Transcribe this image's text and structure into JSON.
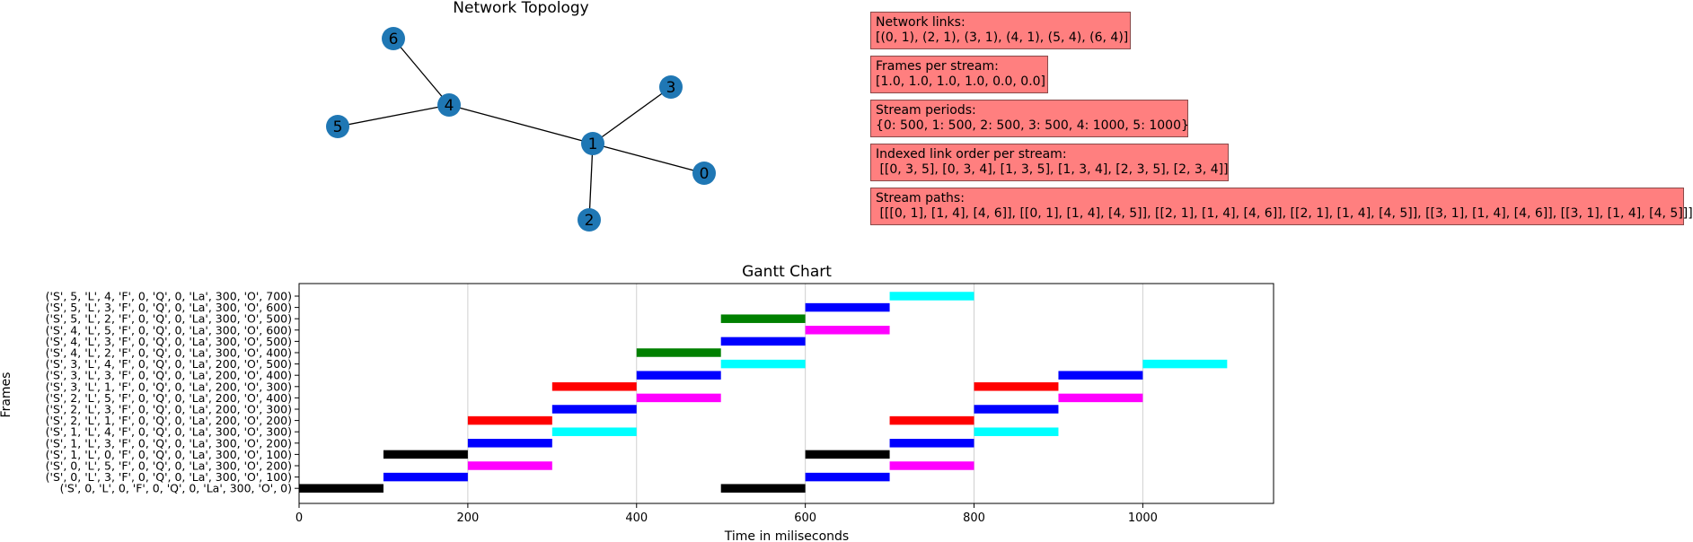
{
  "chart_data": [
    {
      "type": "network",
      "title": "Network  Topology",
      "nodes": [
        {
          "id": "0",
          "label": "0"
        },
        {
          "id": "1",
          "label": "1"
        },
        {
          "id": "2",
          "label": "2"
        },
        {
          "id": "3",
          "label": "3"
        },
        {
          "id": "4",
          "label": "4"
        },
        {
          "id": "5",
          "label": "5"
        },
        {
          "id": "6",
          "label": "6"
        }
      ],
      "edges": [
        [
          "0",
          "1"
        ],
        [
          "2",
          "1"
        ],
        [
          "3",
          "1"
        ],
        [
          "4",
          "1"
        ],
        [
          "5",
          "4"
        ],
        [
          "6",
          "4"
        ]
      ],
      "node_color": "#1f77b4"
    },
    {
      "type": "gantt",
      "title": "Gantt Chart",
      "xlabel": "Time in miliseconds",
      "ylabel": "Frames",
      "xlim": [
        0,
        1155
      ],
      "xticks": [
        0,
        200,
        400,
        600,
        800,
        1000
      ],
      "grid": "x",
      "categories": [
        "('S', 0, 'L', 0, 'F', 0, 'Q', 0, 'La', 300, 'O', 0)",
        "('S', 0, 'L', 3, 'F', 0, 'Q', 0, 'La', 300, 'O', 100)",
        "('S', 0, 'L', 5, 'F', 0, 'Q', 0, 'La', 300, 'O', 200)",
        "('S', 1, 'L', 0, 'F', 0, 'Q', 0, 'La', 300, 'O', 100)",
        "('S', 1, 'L', 3, 'F', 0, 'Q', 0, 'La', 300, 'O', 200)",
        "('S', 1, 'L', 4, 'F', 0, 'Q', 0, 'La', 300, 'O', 300)",
        "('S', 2, 'L', 1, 'F', 0, 'Q', 0, 'La', 200, 'O', 200)",
        "('S', 2, 'L', 3, 'F', 0, 'Q', 0, 'La', 200, 'O', 300)",
        "('S', 2, 'L', 5, 'F', 0, 'Q', 0, 'La', 200, 'O', 400)",
        "('S', 3, 'L', 1, 'F', 0, 'Q', 0, 'La', 200, 'O', 300)",
        "('S', 3, 'L', 3, 'F', 0, 'Q', 0, 'La', 200, 'O', 400)",
        "('S', 3, 'L', 4, 'F', 0, 'Q', 0, 'La', 200, 'O', 500)",
        "('S', 4, 'L', 2, 'F', 0, 'Q', 0, 'La', 300, 'O', 400)",
        "('S', 4, 'L', 3, 'F', 0, 'Q', 0, 'La', 300, 'O', 500)",
        "('S', 4, 'L', 5, 'F', 0, 'Q', 0, 'La', 300, 'O', 600)",
        "('S', 5, 'L', 2, 'F', 0, 'Q', 0, 'La', 300, 'O', 500)",
        "('S', 5, 'L', 3, 'F', 0, 'Q', 0, 'La', 300, 'O', 600)",
        "('S', 5, 'L', 4, 'F', 0, 'Q', 0, 'La', 300, 'O', 700)"
      ],
      "bars": [
        {
          "row": 0,
          "start": 0,
          "end": 100,
          "color": "#000000"
        },
        {
          "row": 0,
          "start": 500,
          "end": 600,
          "color": "#000000"
        },
        {
          "row": 1,
          "start": 100,
          "end": 200,
          "color": "#0000ff"
        },
        {
          "row": 1,
          "start": 600,
          "end": 700,
          "color": "#0000ff"
        },
        {
          "row": 2,
          "start": 200,
          "end": 300,
          "color": "#ff00ff"
        },
        {
          "row": 2,
          "start": 700,
          "end": 800,
          "color": "#ff00ff"
        },
        {
          "row": 3,
          "start": 100,
          "end": 200,
          "color": "#000000"
        },
        {
          "row": 3,
          "start": 600,
          "end": 700,
          "color": "#000000"
        },
        {
          "row": 4,
          "start": 200,
          "end": 300,
          "color": "#0000ff"
        },
        {
          "row": 4,
          "start": 700,
          "end": 800,
          "color": "#0000ff"
        },
        {
          "row": 5,
          "start": 300,
          "end": 400,
          "color": "#00ffff"
        },
        {
          "row": 5,
          "start": 800,
          "end": 900,
          "color": "#00ffff"
        },
        {
          "row": 6,
          "start": 200,
          "end": 300,
          "color": "#ff0000"
        },
        {
          "row": 6,
          "start": 700,
          "end": 800,
          "color": "#ff0000"
        },
        {
          "row": 7,
          "start": 300,
          "end": 400,
          "color": "#0000ff"
        },
        {
          "row": 7,
          "start": 800,
          "end": 900,
          "color": "#0000ff"
        },
        {
          "row": 8,
          "start": 400,
          "end": 500,
          "color": "#ff00ff"
        },
        {
          "row": 8,
          "start": 900,
          "end": 1000,
          "color": "#ff00ff"
        },
        {
          "row": 9,
          "start": 300,
          "end": 400,
          "color": "#ff0000"
        },
        {
          "row": 9,
          "start": 800,
          "end": 900,
          "color": "#ff0000"
        },
        {
          "row": 10,
          "start": 400,
          "end": 500,
          "color": "#0000ff"
        },
        {
          "row": 10,
          "start": 900,
          "end": 1000,
          "color": "#0000ff"
        },
        {
          "row": 11,
          "start": 500,
          "end": 600,
          "color": "#00ffff"
        },
        {
          "row": 11,
          "start": 1000,
          "end": 1100,
          "color": "#00ffff"
        },
        {
          "row": 12,
          "start": 400,
          "end": 500,
          "color": "#008000"
        },
        {
          "row": 13,
          "start": 500,
          "end": 600,
          "color": "#0000ff"
        },
        {
          "row": 14,
          "start": 600,
          "end": 700,
          "color": "#ff00ff"
        },
        {
          "row": 15,
          "start": 500,
          "end": 600,
          "color": "#008000"
        },
        {
          "row": 16,
          "start": 600,
          "end": 700,
          "color": "#0000ff"
        },
        {
          "row": 17,
          "start": 700,
          "end": 800,
          "color": "#00ffff"
        }
      ]
    }
  ],
  "info_boxes": [
    {
      "title": "Network links:",
      "body": "[(0, 1), (2, 1), (3, 1), (4, 1), (5, 4), (6, 4)]"
    },
    {
      "title": "Frames per stream:",
      "body": "[1.0, 1.0, 1.0, 1.0, 0.0, 0.0]"
    },
    {
      "title": "Stream periods:",
      "body": "{0: 500, 1: 500, 2: 500, 3: 500, 4: 1000, 5: 1000}"
    },
    {
      "title": "Indexed link order per stream:",
      "body": " [[0, 3, 5], [0, 3, 4], [1, 3, 5], [1, 3, 4], [2, 3, 5], [2, 3, 4]]"
    },
    {
      "title": "Stream paths:",
      "body": " [[[0, 1], [1, 4], [4, 6]], [[0, 1], [1, 4], [4, 5]], [[2, 1], [1, 4], [4, 6]], [[2, 1], [1, 4], [4, 5]], [[3, 1], [1, 4], [4, 6]], [[3, 1], [1, 4], [4, 5]]]"
    }
  ],
  "info_box_color": "#ff7f7f"
}
